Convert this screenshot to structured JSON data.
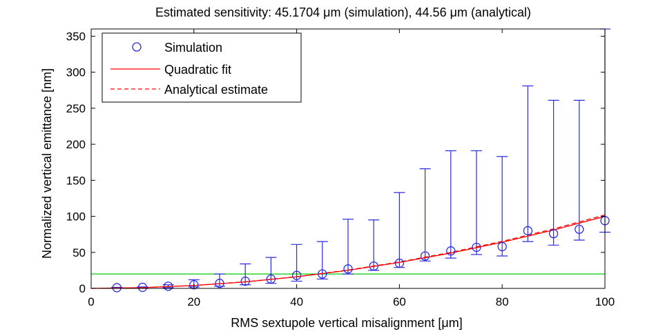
{
  "chart_data": {
    "type": "scatter",
    "title": "Estimated sensitivity: 45.1704 μm (simulation), 44.56 μm (analytical)",
    "xlabel": "RMS sextupole vertical misalignment [μm]",
    "ylabel": "Normalized vertical emittance [nm]",
    "xlim": [
      0,
      100
    ],
    "ylim": [
      0,
      360
    ],
    "xticks": [
      0,
      20,
      40,
      60,
      80,
      100
    ],
    "yticks": [
      0,
      50,
      100,
      150,
      200,
      250,
      300,
      350
    ],
    "grid": false,
    "legend_position": "top-left",
    "threshold": 20,
    "colors": {
      "simulation": "#2a2ae0",
      "quadratic_fit": "#ff0000",
      "analytical": "#ff0000",
      "threshold": "#00cc00"
    },
    "series": [
      {
        "name": "Simulation",
        "style": "circle-markers-with-errorbars",
        "points": [
          {
            "x": 5,
            "y": 1,
            "low": 0.5,
            "high": 1.5
          },
          {
            "x": 10,
            "y": 1.5,
            "low": 0.5,
            "high": 2
          },
          {
            "x": 15,
            "y": 3,
            "low": 1,
            "high": 5
          },
          {
            "x": 20,
            "y": 5,
            "low": 2,
            "high": 12
          },
          {
            "x": 25,
            "y": 7,
            "low": 3,
            "high": 20
          },
          {
            "x": 30,
            "y": 10,
            "low": 5,
            "high": 34
          },
          {
            "x": 35,
            "y": 13,
            "low": 7,
            "high": 43
          },
          {
            "x": 40,
            "y": 18,
            "low": 10,
            "high": 61
          },
          {
            "x": 45,
            "y": 20,
            "low": 13,
            "high": 65
          },
          {
            "x": 50,
            "y": 27,
            "low": 20,
            "high": 96
          },
          {
            "x": 55,
            "y": 31,
            "low": 25,
            "high": 95
          },
          {
            "x": 60,
            "y": 35,
            "low": 29,
            "high": 133
          },
          {
            "x": 65,
            "y": 45,
            "low": 38,
            "high": 166
          },
          {
            "x": 70,
            "y": 52,
            "low": 42,
            "high": 191
          },
          {
            "x": 75,
            "y": 57,
            "low": 47,
            "high": 191
          },
          {
            "x": 80,
            "y": 58,
            "low": 45,
            "high": 183
          },
          {
            "x": 85,
            "y": 80,
            "low": 65,
            "high": 281
          },
          {
            "x": 90,
            "y": 76,
            "low": 60,
            "high": 261
          },
          {
            "x": 95,
            "y": 82,
            "low": 67,
            "high": 261
          },
          {
            "x": 100,
            "y": 94,
            "low": 78,
            "high": 360
          }
        ]
      },
      {
        "name": "Quadratic fit",
        "style": "solid-line",
        "model": "quadratic",
        "x": [
          0,
          10,
          20,
          30,
          40,
          50,
          60,
          70,
          80,
          90,
          100
        ],
        "values": [
          0,
          1,
          4,
          9,
          16,
          25,
          36,
          49,
          64,
          81,
          100
        ]
      },
      {
        "name": "Analytical estimate",
        "style": "dashed-line",
        "model": "quadratic",
        "x": [
          0,
          10,
          20,
          30,
          40,
          50,
          60,
          70,
          80,
          90,
          100
        ],
        "values": [
          0,
          1.02,
          4.08,
          9.18,
          16.3,
          25.5,
          36.7,
          50.0,
          65.3,
          82.6,
          102
        ]
      }
    ]
  }
}
